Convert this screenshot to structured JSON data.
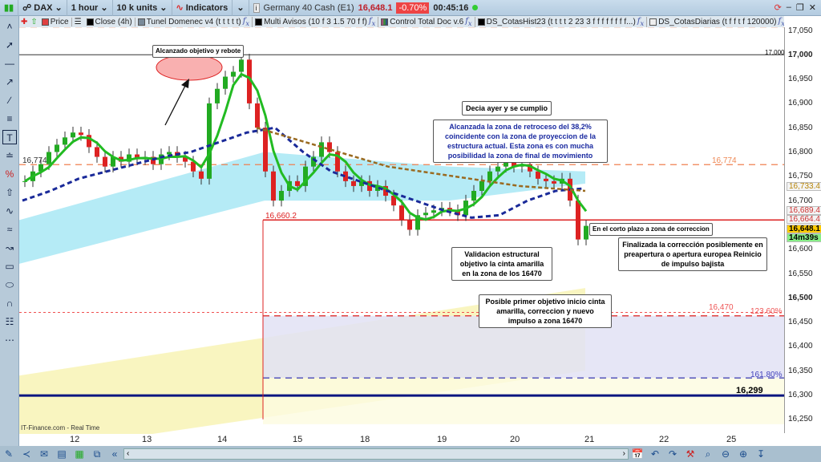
{
  "toolbar": {
    "symbol": "DAX",
    "timeframe": "1 hour",
    "units": "10 k units",
    "indicators": "Indicators",
    "instrument": "Germany 40 Cash (E1)",
    "price": "16,648.1",
    "change": "-0.70%",
    "clock": "00:45:16"
  },
  "legend": [
    {
      "label": "Price",
      "color": "#e04040"
    },
    {
      "label": "Close (4h)",
      "color": "#000000"
    },
    {
      "label": "Tunel Domenec v4 (t t t t t)",
      "color": "#7a8a99"
    },
    {
      "label": "Multi Avisos (10 f 3 1.5 70 f f)",
      "color": "#000000"
    },
    {
      "label": "Control Total Doc v.6",
      "color": "#cc3399"
    },
    {
      "label": "DS_CotasHist23 (t t t t 2 23 3 f f f f f f f f...)",
      "color": "#000000"
    },
    {
      "label": "DS_CotasDiarias (t f f t f 120000)",
      "color": "#eeeeee"
    }
  ],
  "price_axis": [
    "17,050",
    "17,000",
    "16,950",
    "16,900",
    "16,850",
    "16,800",
    "16,750",
    "16,700",
    "16,600",
    "16,550",
    "16,500",
    "16,450",
    "16,400",
    "16,350",
    "16,300",
    "16,250"
  ],
  "price_tags": {
    "t1": "16,733.4",
    "t2": "16,689.4",
    "t3": "16,664.4",
    "last": "16,648.1",
    "countdown": "14m39s"
  },
  "time_axis": [
    "12",
    "13",
    "14",
    "15",
    "18",
    "19",
    "20",
    "21",
    "22",
    "25"
  ],
  "levels": {
    "l17000": "17,000",
    "l16660": "16,660.2",
    "l16774": "16,774",
    "l16774b": "16,774",
    "l16470": "16,470",
    "fib1236": "123.60%",
    "fib1618": "161.80%",
    "l16299": "16,299"
  },
  "notes": {
    "n1": "Alcanzado objetivo y rebote",
    "n2": "Decia ayer y se cumplio",
    "n3": "Alcanzada la zona de retroceso del 38,2% coincidente con la zona de proyeccion de la estructura actual. Esta zona es con mucha posibilidad la zona de final de movimiento",
    "n4": "En el corto plazo a zona de correccion",
    "n5": "Finalizada la corrección posiblemente en preapertura o apertura europea Reinicio de impulso bajista",
    "n6": "Validacion estructural objetivo la cinta amarilla en la zona de los 16470",
    "n7": "Posible primer objetivo inicio cinta amarilla, correccion y nuevo impulso a zona 16470"
  },
  "footer": "IT-Finance.com - Real Time",
  "colors": {
    "up": "#22aa22",
    "down": "#dd2222",
    "ma_fast": "#22bb22",
    "ma_slow": "#1a2a99",
    "ma_brown": "#9a6a20",
    "band_cyan": "#a8e8f4",
    "band_yellow": "#f7f2b0",
    "zone_lavender": "#e2e2f4"
  },
  "closes": [
    16740,
    16760,
    16775,
    16800,
    16815,
    16830,
    16840,
    16835,
    16810,
    16790,
    16770,
    16790,
    16780,
    16795,
    16785,
    16790,
    16775,
    16795,
    16800,
    16790,
    16780,
    16760,
    16745,
    16900,
    16930,
    16955,
    16965,
    16990,
    16900,
    16850,
    16760,
    16700,
    16720,
    16740,
    16730,
    16770,
    16790,
    16820,
    16800,
    16760,
    16740,
    16730,
    16740,
    16720,
    16730,
    16710,
    16690,
    16660,
    16640,
    16670,
    16675,
    16680,
    16685,
    16680,
    16670,
    16700,
    16720,
    16740,
    16760,
    16770,
    16780,
    16770,
    16775,
    16760,
    16745,
    16740,
    16735,
    16745,
    16700,
    16620,
    16648
  ],
  "ma_slow": [
    16700,
    16720,
    16745,
    16760,
    16775,
    16790,
    16800,
    16820,
    16840,
    16850,
    16800,
    16760,
    16740,
    16720,
    16700,
    16680,
    16665,
    16670,
    16700,
    16720,
    16725
  ],
  "ma_brown": [
    16850,
    16830,
    16810,
    16790,
    16770,
    16760,
    16750,
    16740,
    16730,
    16725,
    16720
  ]
}
